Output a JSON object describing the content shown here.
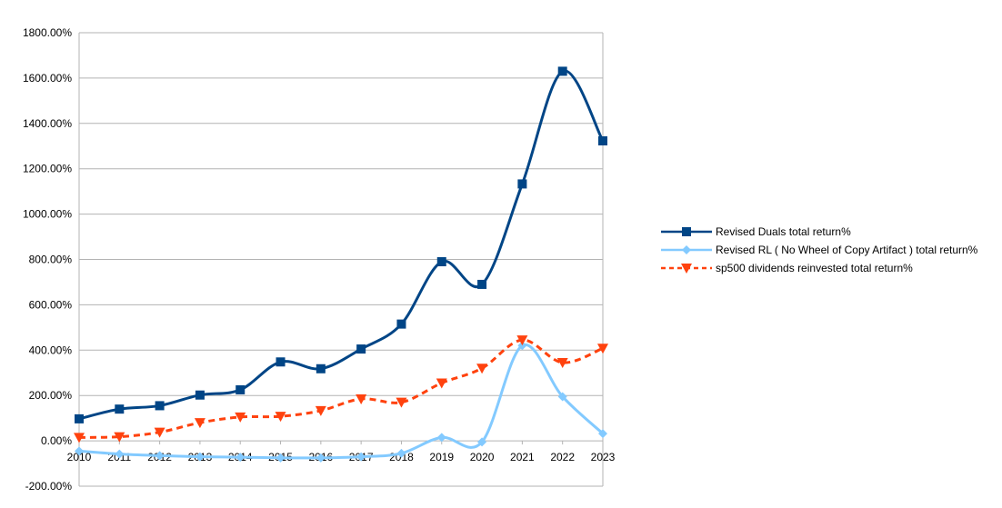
{
  "chart_data": {
    "type": "line",
    "categories": [
      "2010",
      "2011",
      "2012",
      "2013",
      "2014",
      "2015",
      "2016",
      "2017",
      "2018",
      "2019",
      "2020",
      "2021",
      "2022",
      "2023"
    ],
    "ylim": [
      -200,
      1800
    ],
    "yticks": [
      -200,
      0,
      200,
      400,
      600,
      800,
      1000,
      1200,
      1400,
      1600,
      1800
    ],
    "ytick_labels": [
      "-200.00%",
      "0.00%",
      "200.00%",
      "400.00%",
      "600.00%",
      "800.00%",
      "1000.00%",
      "1200.00%",
      "1400.00%",
      "1600.00%",
      "1800.00%"
    ],
    "grid": "horizontal",
    "legend_position": "right",
    "series": [
      {
        "name": "Revised Duals  total return%",
        "color": "#004586",
        "marker": "square",
        "dash": "solid",
        "values": [
          97,
          140,
          155,
          202,
          225,
          348,
          318,
          405,
          515,
          790,
          690,
          1133,
          1630,
          1323
        ]
      },
      {
        "name": "Revised RL    ( No Wheel of Copy Artifact ) total return%",
        "color": "#83caff",
        "marker": "diamond",
        "dash": "solid",
        "values": [
          -45,
          -58,
          -65,
          -70,
          -72,
          -75,
          -75,
          -70,
          -55,
          15,
          -5,
          420,
          195,
          32
        ]
      },
      {
        "name": "sp500 dividends reinvested total return%",
        "color": "#ff420e",
        "marker": "triangle-down",
        "dash": "dashed",
        "values": [
          15,
          18,
          38,
          80,
          105,
          108,
          133,
          185,
          170,
          255,
          320,
          445,
          345,
          408
        ]
      }
    ]
  }
}
